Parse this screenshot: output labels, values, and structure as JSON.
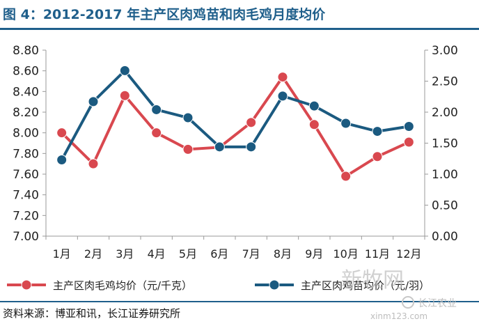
{
  "title": "图 4：2012-2017 年主产区肉鸡苗和肉毛鸡月度均价",
  "source": "资料来源：博亚和讯，长江证券研究所",
  "watermark": {
    "brand": "新牧网",
    "account": "长江农业",
    "url": "xinm123.com"
  },
  "colors": {
    "title": "#1f5f8b",
    "meat_chicken": "#d9484f",
    "chick": "#1b5a80"
  },
  "chart_data": {
    "type": "line",
    "categories": [
      "1月",
      "2月",
      "3月",
      "4月",
      "5月",
      "6月",
      "7月",
      "8月",
      "9月",
      "10月",
      "11月",
      "12月"
    ],
    "y_left": {
      "min": 7.0,
      "max": 8.8,
      "step": 0.2,
      "ticks": [
        "7.00",
        "7.20",
        "7.40",
        "7.60",
        "7.80",
        "8.00",
        "8.20",
        "8.40",
        "8.60",
        "8.80"
      ]
    },
    "y_right": {
      "min": 0.0,
      "max": 3.0,
      "step": 0.5,
      "ticks": [
        "0.00",
        "0.50",
        "1.00",
        "1.50",
        "2.00",
        "2.50",
        "3.00"
      ]
    },
    "series": [
      {
        "name": "主产区肉毛鸡均价（元/千克）",
        "axis": "left",
        "color": "#d9484f",
        "values": [
          8.0,
          7.7,
          8.36,
          8.0,
          7.84,
          7.86,
          8.1,
          8.54,
          8.08,
          7.58,
          7.77,
          7.91
        ]
      },
      {
        "name": "主产区肉鸡苗均价（元/羽）",
        "axis": "right",
        "color": "#1b5a80",
        "values": [
          1.23,
          2.17,
          2.67,
          2.04,
          1.91,
          1.44,
          1.44,
          2.26,
          2.1,
          1.82,
          1.69,
          1.77
        ]
      }
    ],
    "grid": false,
    "legend": "bottom"
  }
}
